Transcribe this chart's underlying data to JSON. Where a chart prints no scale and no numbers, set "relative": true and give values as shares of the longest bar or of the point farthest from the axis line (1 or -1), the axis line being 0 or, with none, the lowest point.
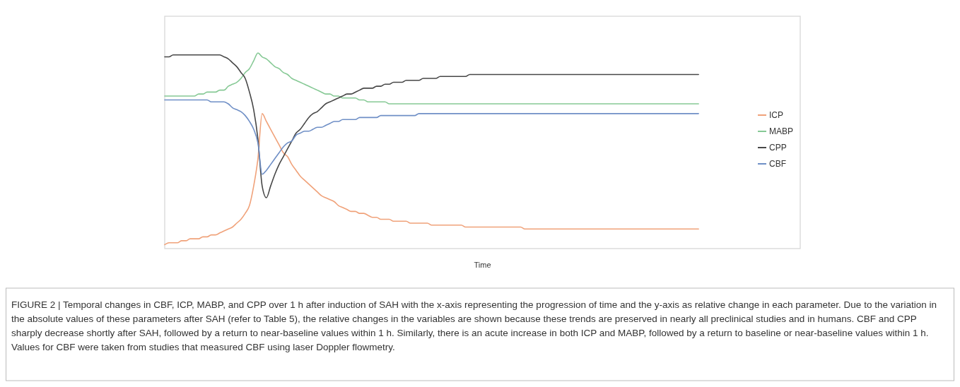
{
  "chart_data": {
    "type": "line",
    "relative": true,
    "xlabel": "Time",
    "legend": "right",
    "categories": [
      null,
      null,
      null,
      null,
      null,
      null,
      null,
      null,
      null,
      null,
      null,
      null,
      null,
      null,
      null,
      null,
      null,
      null,
      null,
      null,
      null,
      null,
      null,
      null,
      null,
      null,
      null,
      null,
      null,
      null,
      null,
      null,
      null,
      null,
      null,
      null,
      null,
      null,
      null,
      null,
      null,
      null,
      null,
      null,
      null,
      null,
      null,
      null,
      null,
      null,
      null,
      null,
      null,
      null,
      null,
      null,
      null,
      null,
      null,
      null,
      null,
      null,
      null,
      null,
      null,
      null,
      null,
      null,
      null,
      null,
      null,
      null,
      null,
      null,
      null,
      null,
      null,
      null,
      null,
      null,
      null,
      null,
      null,
      null,
      null,
      null,
      null,
      null,
      null,
      null,
      null,
      null,
      null,
      null,
      null,
      null,
      null,
      null,
      null,
      null,
      null,
      null,
      null,
      null,
      null,
      null,
      null,
      null,
      null,
      null,
      null,
      null,
      null,
      null,
      null,
      null,
      null,
      null,
      null,
      null,
      null,
      null,
      null,
      null,
      null,
      null,
      null,
      null,
      null,
      null,
      null,
      null,
      null,
      null,
      null,
      null,
      null,
      null,
      null,
      null,
      null,
      null,
      null,
      null,
      null,
      null,
      null,
      null,
      null,
      null,
      null
    ],
    "series": [
      {
        "name": "ICP",
        "color": "#f0a27a",
        "values": [
          0.02,
          0.03,
          0.03,
          0.03,
          0.04,
          0.04,
          0.05,
          0.05,
          0.05,
          0.06,
          0.06,
          0.07,
          0.07,
          0.08,
          0.09,
          0.1,
          0.11,
          0.13,
          0.15,
          0.18,
          0.22,
          0.32,
          0.46,
          0.69,
          0.65,
          0.61,
          0.57,
          0.53,
          0.49,
          0.47,
          0.43,
          0.4,
          0.37,
          0.35,
          0.33,
          0.31,
          0.29,
          0.27,
          0.26,
          0.25,
          0.24,
          0.22,
          0.21,
          0.2,
          0.19,
          0.19,
          0.18,
          0.18,
          0.17,
          0.16,
          0.16,
          0.15,
          0.15,
          0.15,
          0.14,
          0.14,
          0.14,
          0.14,
          0.13,
          0.13,
          0.13,
          0.13,
          0.13,
          0.12,
          0.12,
          0.12,
          0.12,
          0.12,
          0.12,
          0.12,
          0.12,
          0.11,
          0.11,
          0.11,
          0.11,
          0.11,
          0.11,
          0.11,
          0.11,
          0.11,
          0.11,
          0.11,
          0.11,
          0.11,
          0.11,
          0.1,
          0.1,
          0.1,
          0.1,
          0.1,
          0.1,
          0.1,
          0.1,
          0.1,
          0.1,
          0.1,
          0.1,
          0.1,
          0.1,
          0.1,
          0.1,
          0.1,
          0.1,
          0.1,
          0.1,
          0.1,
          0.1,
          0.1,
          0.1,
          0.1,
          0.1,
          0.1,
          0.1,
          0.1,
          0.1,
          0.1,
          0.1,
          0.1,
          0.1,
          0.1,
          0.1,
          0.1,
          0.1,
          0.1,
          0.1,
          0.1,
          0.1,
          null,
          null,
          null,
          null,
          null,
          null,
          null,
          null,
          null,
          null,
          null,
          null,
          null,
          null,
          null,
          null,
          null,
          null,
          null,
          null,
          null,
          null,
          null,
          null
        ]
      },
      {
        "name": "MABP",
        "color": "#86c995",
        "values": [
          0.78,
          0.78,
          0.78,
          0.78,
          0.78,
          0.78,
          0.78,
          0.78,
          0.79,
          0.79,
          0.8,
          0.8,
          0.8,
          0.81,
          0.81,
          0.83,
          0.84,
          0.85,
          0.87,
          0.9,
          0.92,
          0.96,
          1.0,
          0.98,
          0.97,
          0.95,
          0.93,
          0.92,
          0.9,
          0.89,
          0.87,
          0.86,
          0.85,
          0.84,
          0.83,
          0.82,
          0.81,
          0.8,
          0.79,
          0.79,
          0.78,
          0.78,
          0.77,
          0.77,
          0.77,
          0.77,
          0.76,
          0.76,
          0.75,
          0.75,
          0.75,
          0.75,
          0.75,
          0.74,
          0.74,
          0.74,
          0.74,
          0.74,
          0.74,
          0.74,
          0.74,
          0.74,
          0.74,
          0.74,
          0.74,
          0.74,
          0.74,
          0.74,
          0.74,
          0.74,
          0.74,
          0.74,
          0.74,
          0.74,
          0.74,
          0.74,
          0.74,
          0.74,
          0.74,
          0.74,
          0.74,
          0.74,
          0.74,
          0.74,
          0.74,
          0.74,
          0.74,
          0.74,
          0.74,
          0.74,
          0.74,
          0.74,
          0.74,
          0.74,
          0.74,
          0.74,
          0.74,
          0.74,
          0.74,
          0.74,
          0.74,
          0.74,
          0.74,
          0.74,
          0.74,
          0.74,
          0.74,
          0.74,
          0.74,
          0.74,
          0.74,
          0.74,
          0.74,
          0.74,
          0.74,
          0.74,
          0.74,
          0.74,
          0.74,
          0.74,
          0.74,
          0.74,
          0.74,
          0.74,
          0.74,
          0.74,
          0.74,
          null,
          null,
          null,
          null,
          null,
          null,
          null,
          null,
          null,
          null,
          null,
          null,
          null,
          null,
          null,
          null,
          null,
          null,
          null,
          null,
          null,
          null,
          null,
          null
        ]
      },
      {
        "name": "CPP",
        "color": "#474747",
        "values": [
          0.98,
          0.98,
          0.99,
          0.99,
          0.99,
          0.99,
          0.99,
          0.99,
          0.99,
          0.99,
          0.99,
          0.99,
          0.99,
          0.99,
          0.98,
          0.97,
          0.95,
          0.93,
          0.9,
          0.87,
          0.8,
          0.71,
          0.56,
          0.32,
          0.26,
          0.32,
          0.38,
          0.43,
          0.47,
          0.51,
          0.55,
          0.59,
          0.61,
          0.64,
          0.67,
          0.69,
          0.7,
          0.72,
          0.74,
          0.75,
          0.76,
          0.77,
          0.78,
          0.79,
          0.79,
          0.8,
          0.81,
          0.82,
          0.82,
          0.82,
          0.83,
          0.83,
          0.84,
          0.84,
          0.85,
          0.85,
          0.85,
          0.86,
          0.86,
          0.86,
          0.86,
          0.87,
          0.87,
          0.87,
          0.87,
          0.88,
          0.88,
          0.88,
          0.88,
          0.88,
          0.88,
          0.88,
          0.89,
          0.89,
          0.89,
          0.89,
          0.89,
          0.89,
          0.89,
          0.89,
          0.89,
          0.89,
          0.89,
          0.89,
          0.89,
          0.89,
          0.89,
          0.89,
          0.89,
          0.89,
          0.89,
          0.89,
          0.89,
          0.89,
          0.89,
          0.89,
          0.89,
          0.89,
          0.89,
          0.89,
          0.89,
          0.89,
          0.89,
          0.89,
          0.89,
          0.89,
          0.89,
          0.89,
          0.89,
          0.89,
          0.89,
          0.89,
          0.89,
          0.89,
          0.89,
          0.89,
          0.89,
          0.89,
          0.89,
          0.89,
          0.89,
          0.89,
          0.89,
          0.89,
          0.89,
          0.89,
          0.89,
          null,
          null,
          null,
          null,
          null,
          null,
          null,
          null,
          null,
          null,
          null,
          null,
          null,
          null,
          null,
          null,
          null,
          null,
          null,
          null,
          null,
          null,
          null,
          null
        ]
      },
      {
        "name": "CBF",
        "color": "#6f8fc6",
        "values": [
          0.76,
          0.76,
          0.76,
          0.76,
          0.76,
          0.76,
          0.76,
          0.76,
          0.76,
          0.76,
          0.76,
          0.75,
          0.75,
          0.75,
          0.75,
          0.74,
          0.72,
          0.71,
          0.7,
          0.68,
          0.65,
          0.61,
          0.54,
          0.38,
          0.4,
          0.43,
          0.46,
          0.49,
          0.52,
          0.54,
          0.55,
          0.58,
          0.59,
          0.6,
          0.6,
          0.61,
          0.62,
          0.62,
          0.63,
          0.64,
          0.65,
          0.65,
          0.66,
          0.66,
          0.66,
          0.66,
          0.67,
          0.67,
          0.67,
          0.67,
          0.67,
          0.68,
          0.68,
          0.68,
          0.68,
          0.68,
          0.68,
          0.68,
          0.68,
          0.68,
          0.69,
          0.69,
          0.69,
          0.69,
          0.69,
          0.69,
          0.69,
          0.69,
          0.69,
          0.69,
          0.69,
          0.69,
          0.69,
          0.69,
          0.69,
          0.69,
          0.69,
          0.69,
          0.69,
          0.69,
          0.69,
          0.69,
          0.69,
          0.69,
          0.69,
          0.69,
          0.69,
          0.69,
          0.69,
          0.69,
          0.69,
          0.69,
          0.69,
          0.69,
          0.69,
          0.69,
          0.69,
          0.69,
          0.69,
          0.69,
          0.69,
          0.69,
          0.69,
          0.69,
          0.69,
          0.69,
          0.69,
          0.69,
          0.69,
          0.69,
          0.69,
          0.69,
          0.69,
          0.69,
          0.69,
          0.69,
          0.69,
          0.69,
          0.69,
          0.69,
          0.69,
          0.69,
          0.69,
          0.69,
          0.69,
          0.69,
          0.69,
          null,
          null,
          null,
          null,
          null,
          null,
          null,
          null,
          null,
          null,
          null,
          null,
          null,
          null,
          null,
          null,
          null,
          null,
          null,
          null,
          null,
          null,
          null,
          null
        ]
      }
    ],
    "annotations": [
      "FIGURE 2 | Temporal changes in CBF, ICP, MABP, and CPP over 1 h after induction of SAH with the x-axis representing the progression of time and the y-axis as relative change in each parameter. Due to the variation in the absolute values of these parameters after SAH (refer to Table 5), the relative changes in the variables are shown because these trends are preserved in nearly all preclinical studies and in humans. CBF and CPP sharply decrease shortly after SAH, followed by a return to near-baseline values within 1 h. Similarly, there is an acute increase in both ICP and MABP, followed by a return to baseline or near-baseline values within 1 h. Values for CBF were taken from studies that measured CBF using laser Doppler flowmetry."
    ]
  }
}
